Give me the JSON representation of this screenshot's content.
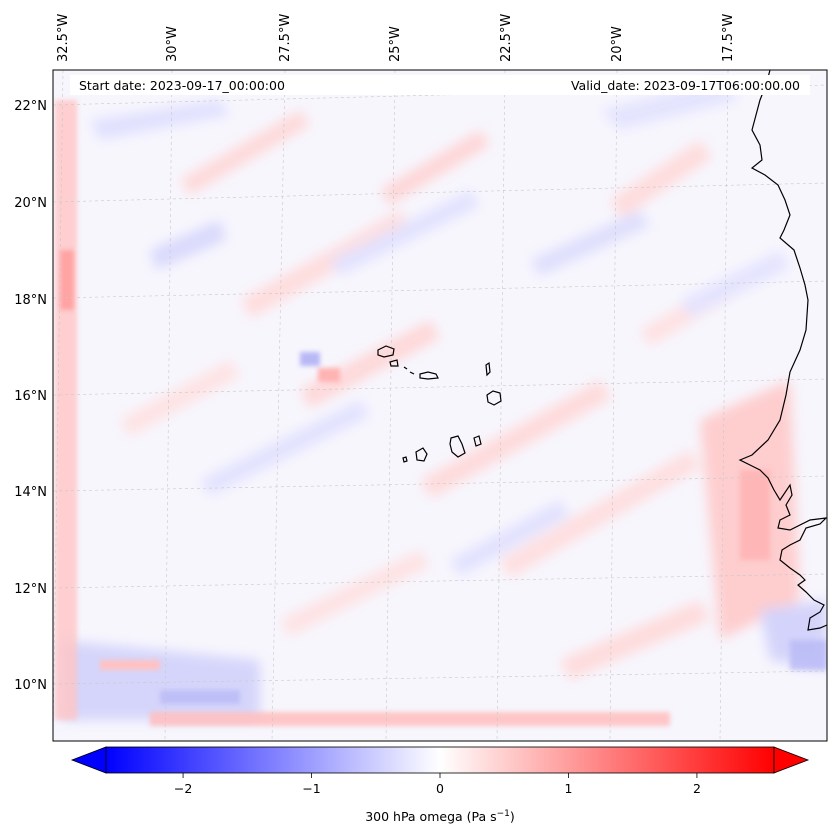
{
  "header": {
    "start_date": "Start date: 2023-09-17_00:00:00",
    "valid_date": "Valid_date: 2023-09-17T06:00:00.00"
  },
  "map": {
    "lon_labels": [
      "32.5°W",
      "30°W",
      "27.5°W",
      "25°W",
      "22.5°W",
      "20°W",
      "17.5°W"
    ],
    "lat_labels": [
      "22°N",
      "20°N",
      "18°N",
      "16°N",
      "14°N",
      "12°N",
      "10°N"
    ],
    "gridlines": true,
    "field": "300 hPa omega"
  },
  "colorbar": {
    "ticks": [
      "−2",
      "−1",
      "0",
      "1",
      "2"
    ],
    "tick_values": [
      -2,
      -1,
      0,
      1,
      2
    ],
    "range": [
      -2.6,
      2.6
    ],
    "label_main": "300 hPa omega (Pa s",
    "label_sup": "−1",
    "label_end": ")",
    "cmap": "bwr",
    "colors": {
      "low": "#0000ff",
      "mid": "#ffffff",
      "high": "#ff0000"
    },
    "extend": "both"
  }
}
